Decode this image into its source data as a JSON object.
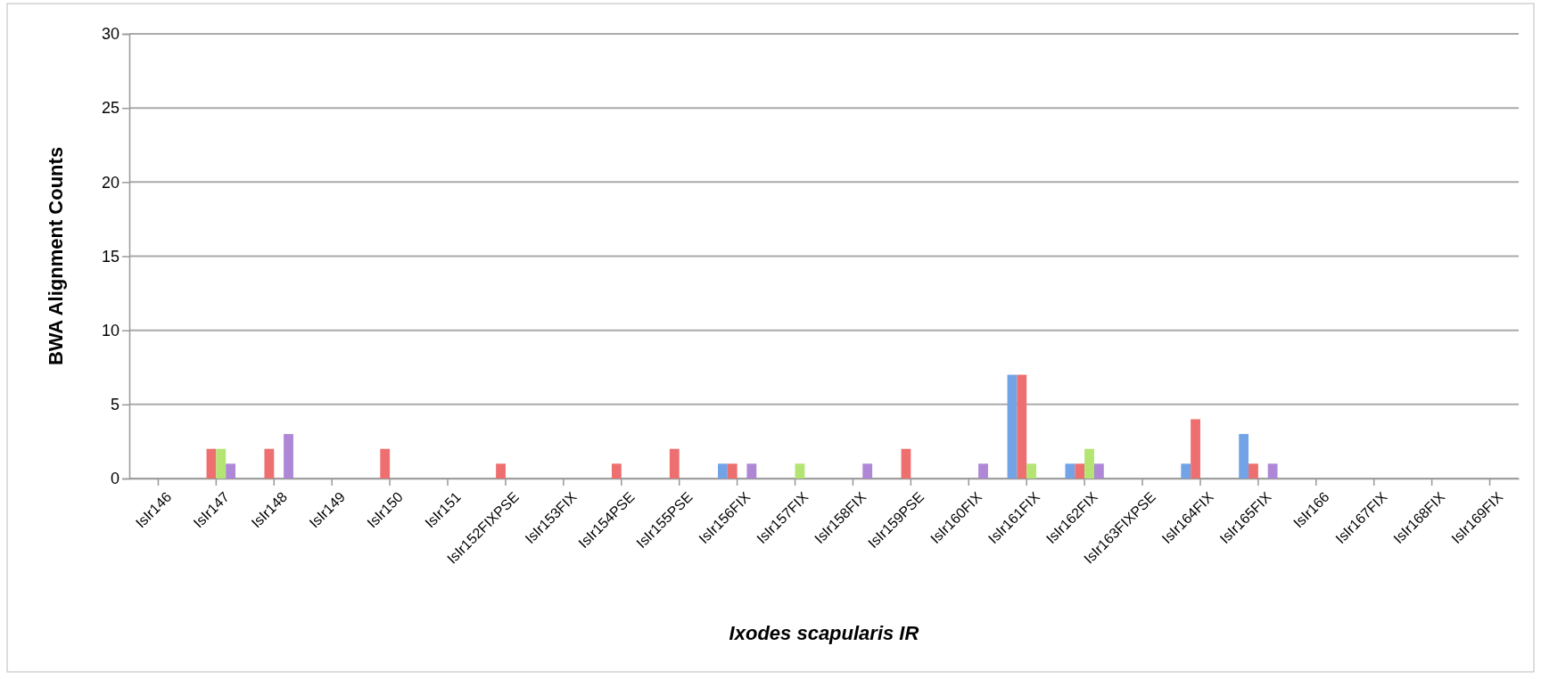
{
  "chart_data": {
    "type": "bar",
    "xlabel": "Ixodes scapularis IR",
    "ylabel": "BWA Alignment Counts",
    "categories": [
      "IsIr146",
      "IsIr147",
      "IsIr148",
      "IsIr149",
      "IsIr150",
      "IsIr151",
      "IsIr152FIXPSE",
      "IsIr153FIX",
      "IsIr154PSE",
      "IsIr155PSE",
      "IsIr156FIX",
      "IsIr157FIX",
      "IsIr158FIX",
      "IsIr159PSE",
      "IsIr160FIX",
      "IsIr161FIX",
      "IsIr162FIX",
      "IsIr163FIXPSE",
      "IsIr164FIX",
      "IsIr165FIX",
      "IsIr166",
      "IsIr167FIX",
      "IsIr168FIX",
      "IsIr169FIX"
    ],
    "series": [
      {
        "color": "#72a3e6",
        "values": [
          0,
          0,
          0,
          0,
          0,
          0,
          0,
          0,
          0,
          0,
          1,
          0,
          0,
          0,
          0,
          7,
          1,
          0,
          1,
          3,
          0,
          0,
          0,
          0
        ]
      },
      {
        "color": "#ee6f6f",
        "values": [
          0,
          2,
          2,
          0,
          2,
          0,
          1,
          0,
          1,
          2,
          1,
          0,
          0,
          2,
          0,
          7,
          1,
          0,
          4,
          1,
          0,
          0,
          0,
          0
        ]
      },
      {
        "color": "#b4e572",
        "values": [
          0,
          2,
          0,
          0,
          0,
          0,
          0,
          0,
          0,
          0,
          0,
          1,
          0,
          0,
          0,
          1,
          2,
          0,
          0,
          0,
          0,
          0,
          0,
          0
        ]
      },
      {
        "color": "#ae88d6",
        "values": [
          0,
          1,
          3,
          0,
          0,
          0,
          0,
          0,
          0,
          0,
          1,
          0,
          1,
          0,
          1,
          0,
          1,
          0,
          0,
          1,
          0,
          0,
          0,
          0
        ]
      }
    ],
    "ylim": [
      0,
      30
    ],
    "yticks": [
      0,
      5,
      10,
      15,
      20,
      25,
      30
    ],
    "grid": "y"
  }
}
